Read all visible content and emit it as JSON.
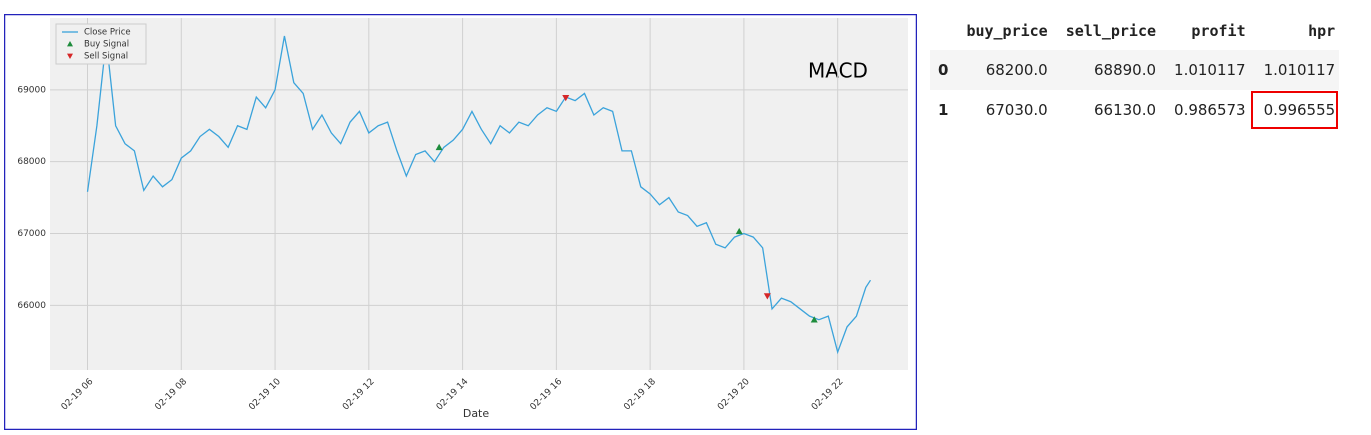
{
  "chart_data": {
    "type": "line",
    "annotation": "MACD",
    "x_label": "Date",
    "xlim": [
      5.2,
      23.5
    ],
    "xticks": [
      {
        "value": 6,
        "label": "02-19 06"
      },
      {
        "value": 8,
        "label": "02-19 08"
      },
      {
        "value": 10,
        "label": "02-19 10"
      },
      {
        "value": 12,
        "label": "02-19 12"
      },
      {
        "value": 14,
        "label": "02-19 14"
      },
      {
        "value": 16,
        "label": "02-19 16"
      },
      {
        "value": 18,
        "label": "02-19 18"
      },
      {
        "value": 20,
        "label": "02-19 20"
      },
      {
        "value": 22,
        "label": "02-19 22"
      }
    ],
    "ylim": [
      65100,
      70000
    ],
    "yticks": [
      66000,
      67000,
      68000,
      69000
    ],
    "grid": true,
    "legend": "upper left",
    "series": [
      {
        "name": "Close Price",
        "color": "#3ba3db",
        "x": [
          6.0,
          6.2,
          6.4,
          6.6,
          6.8,
          7.0,
          7.2,
          7.4,
          7.6,
          7.8,
          8.0,
          8.2,
          8.4,
          8.6,
          8.8,
          9.0,
          9.2,
          9.4,
          9.6,
          9.8,
          10.0,
          10.2,
          10.4,
          10.6,
          10.8,
          11.0,
          11.2,
          11.4,
          11.6,
          11.8,
          12.0,
          12.2,
          12.4,
          12.6,
          12.8,
          13.0,
          13.2,
          13.4,
          13.6,
          13.8,
          14.0,
          14.2,
          14.4,
          14.6,
          14.8,
          15.0,
          15.2,
          15.4,
          15.6,
          15.8,
          16.0,
          16.2,
          16.4,
          16.6,
          16.8,
          17.0,
          17.2,
          17.4,
          17.6,
          17.8,
          18.0,
          18.2,
          18.4,
          18.6,
          18.8,
          19.0,
          19.2,
          19.4,
          19.6,
          19.8,
          20.0,
          20.2,
          20.4,
          20.6,
          20.8,
          21.0,
          21.2,
          21.4,
          21.6,
          21.8,
          22.0,
          22.2,
          22.4,
          22.6,
          22.7
        ],
        "values": [
          67580,
          68500,
          69700,
          68500,
          68250,
          68150,
          67600,
          67800,
          67650,
          67750,
          68050,
          68150,
          68350,
          68450,
          68350,
          68200,
          68500,
          68450,
          68900,
          68750,
          69000,
          69750,
          69100,
          68950,
          68450,
          68650,
          68400,
          68250,
          68550,
          68700,
          68400,
          68500,
          68550,
          68150,
          67800,
          68100,
          68150,
          68000,
          68200,
          68300,
          68450,
          68700,
          68450,
          68250,
          68500,
          68400,
          68550,
          68500,
          68650,
          68750,
          68700,
          68900,
          68850,
          68950,
          68650,
          68750,
          68700,
          68150,
          68150,
          67650,
          67550,
          67400,
          67500,
          67300,
          67250,
          67100,
          67150,
          66850,
          66800,
          66950,
          67000,
          66950,
          66800,
          65950,
          66100,
          66050,
          65950,
          65850,
          65800,
          65850,
          65350,
          65700,
          65850,
          66250,
          66350
        ]
      },
      {
        "name": "Buy Signal",
        "color": "#1e8c3c",
        "marker": "^",
        "x": [
          13.5,
          19.9,
          21.5
        ],
        "values": [
          68200,
          67030,
          65800
        ]
      },
      {
        "name": "Sell Signal",
        "color": "#d62728",
        "marker": "v",
        "x": [
          16.2,
          20.5
        ],
        "values": [
          68890,
          66130
        ]
      }
    ]
  },
  "table": {
    "columns": [
      "buy_price",
      "sell_price",
      "profit",
      "hpr"
    ],
    "rows": [
      {
        "index": "0",
        "cells": [
          "68200.0",
          "68890.0",
          "1.010117",
          "1.010117"
        ]
      },
      {
        "index": "1",
        "cells": [
          "67030.0",
          "66130.0",
          "0.986573",
          "0.996555"
        ]
      }
    ]
  }
}
